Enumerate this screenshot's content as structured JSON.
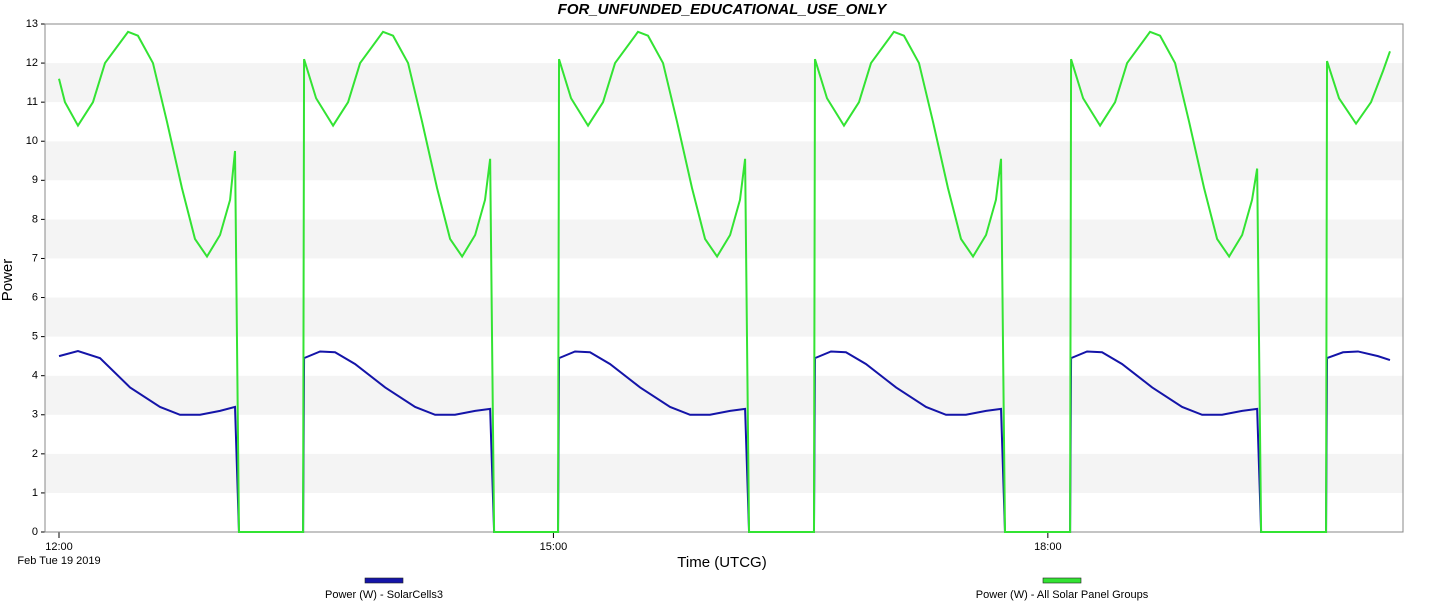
{
  "chart_data": {
    "type": "line",
    "title": "FOR_UNFUNDED_EDUCATIONAL_USE_ONLY",
    "x_label": "Time (UTCG)",
    "x_date_label": "Feb Tue 19 2019",
    "y_label": "Power",
    "xlim": [
      11.915,
      20.155
    ],
    "xticks": [
      {
        "value": 12,
        "label": "12:00"
      },
      {
        "value": 15,
        "label": "15:00"
      },
      {
        "value": 18,
        "label": "18:00"
      }
    ],
    "ylim": [
      0,
      13
    ],
    "yticks": [
      0,
      1,
      2,
      3,
      4,
      5,
      6,
      7,
      8,
      9,
      10,
      11,
      12,
      13
    ],
    "grid": true,
    "legend": "bottom",
    "series": [
      {
        "name": "Power (W) - SolarCells3",
        "color": "#1414a8",
        "x": [
          12.0,
          12.115,
          12.249,
          12.431,
          12.613,
          12.734,
          12.856,
          12.977,
          13.068,
          13.092,
          13.481,
          13.487,
          13.584,
          13.675,
          13.796,
          13.979,
          14.161,
          14.282,
          14.403,
          14.525,
          14.616,
          14.64,
          15.028,
          15.034,
          15.131,
          15.222,
          15.343,
          15.526,
          15.708,
          15.829,
          15.95,
          16.072,
          16.163,
          16.187,
          16.581,
          16.587,
          16.684,
          16.775,
          16.896,
          17.079,
          17.261,
          17.382,
          17.503,
          17.625,
          17.716,
          17.74,
          18.135,
          18.141,
          18.238,
          18.329,
          18.45,
          18.633,
          18.815,
          18.936,
          19.057,
          19.179,
          19.27,
          19.294,
          19.688,
          19.694,
          19.791,
          19.882,
          20.003,
          20.076
        ],
        "values": [
          4.5,
          4.63,
          4.45,
          3.7,
          3.2,
          3.0,
          3.0,
          3.1,
          3.2,
          0,
          0,
          4.45,
          4.62,
          4.6,
          4.3,
          3.7,
          3.2,
          3.0,
          3.0,
          3.1,
          3.15,
          0,
          0,
          4.45,
          4.62,
          4.6,
          4.3,
          3.7,
          3.2,
          3.0,
          3.0,
          3.1,
          3.15,
          0,
          0,
          4.45,
          4.62,
          4.6,
          4.3,
          3.7,
          3.2,
          3.0,
          3.0,
          3.1,
          3.15,
          0,
          0,
          4.45,
          4.62,
          4.6,
          4.3,
          3.7,
          3.2,
          3.0,
          3.0,
          3.1,
          3.15,
          0,
          0,
          4.45,
          4.6,
          4.62,
          4.5,
          4.4
        ]
      },
      {
        "name": "Power (W) - All Solar Panel Groups",
        "color": "#33e333",
        "x": [
          12.0,
          12.036,
          12.115,
          12.206,
          12.279,
          12.419,
          12.479,
          12.57,
          12.655,
          12.746,
          12.825,
          12.898,
          12.977,
          13.038,
          13.068,
          13.092,
          13.481,
          13.487,
          13.56,
          13.663,
          13.754,
          13.827,
          13.966,
          14.027,
          14.118,
          14.203,
          14.294,
          14.373,
          14.446,
          14.525,
          14.585,
          14.616,
          14.64,
          15.028,
          15.034,
          15.107,
          15.21,
          15.301,
          15.374,
          15.513,
          15.574,
          15.665,
          15.75,
          15.841,
          15.92,
          15.993,
          16.072,
          16.132,
          16.163,
          16.187,
          16.581,
          16.587,
          16.66,
          16.763,
          16.854,
          16.927,
          17.066,
          17.127,
          17.218,
          17.303,
          17.394,
          17.473,
          17.546,
          17.625,
          17.685,
          17.716,
          17.74,
          18.135,
          18.141,
          18.214,
          18.317,
          18.408,
          18.481,
          18.62,
          18.681,
          18.772,
          18.857,
          18.948,
          19.027,
          19.1,
          19.179,
          19.239,
          19.27,
          19.294,
          19.688,
          19.694,
          19.767,
          19.87,
          19.961,
          20.034,
          20.076
        ],
        "values": [
          11.6,
          11.0,
          10.4,
          11.0,
          12.0,
          12.8,
          12.7,
          12.0,
          10.5,
          8.8,
          7.5,
          7.05,
          7.6,
          8.5,
          9.75,
          0,
          0,
          12.1,
          11.1,
          10.4,
          11.0,
          12.0,
          12.8,
          12.7,
          12.0,
          10.5,
          8.8,
          7.5,
          7.05,
          7.6,
          8.5,
          9.55,
          0,
          0,
          12.1,
          11.1,
          10.4,
          11.0,
          12.0,
          12.8,
          12.7,
          12.0,
          10.5,
          8.8,
          7.5,
          7.05,
          7.6,
          8.5,
          9.55,
          0,
          0,
          12.1,
          11.1,
          10.4,
          11.0,
          12.0,
          12.8,
          12.7,
          12.0,
          10.5,
          8.8,
          7.5,
          7.05,
          7.6,
          8.5,
          9.55,
          0,
          0,
          12.1,
          11.1,
          10.4,
          11.0,
          12.0,
          12.8,
          12.7,
          12.0,
          10.5,
          8.8,
          7.5,
          7.05,
          7.6,
          8.5,
          9.3,
          0,
          0,
          12.05,
          11.1,
          10.45,
          11.0,
          11.8,
          12.3
        ]
      }
    ]
  }
}
